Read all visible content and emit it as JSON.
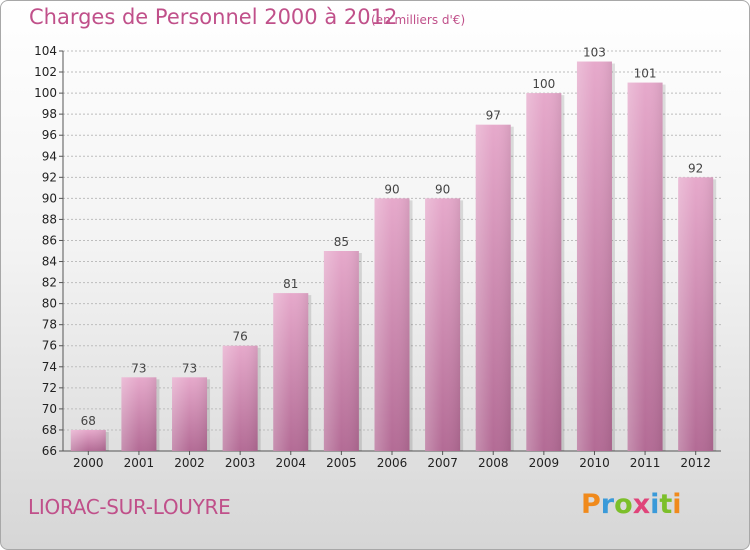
{
  "title": "Charges de Personnel 2000 à 2012",
  "subtitle": "(en milliers d'€)",
  "commune": "LIORAC-SUR-LOUYRE",
  "logo": {
    "p": "P",
    "r": "r",
    "o": "o",
    "x": "x",
    "i": "i",
    "t": "t",
    "i2": "i"
  },
  "colors": {
    "bar": "#d98bb6",
    "bar_light": "#e7b0cf",
    "text": "#c0508a"
  },
  "chart_data": {
    "type": "bar",
    "categories": [
      "2000",
      "2001",
      "2002",
      "2003",
      "2004",
      "2005",
      "2006",
      "2007",
      "2008",
      "2009",
      "2010",
      "2011",
      "2012"
    ],
    "values": [
      68,
      73,
      73,
      76,
      81,
      85,
      90,
      90,
      97,
      100,
      103,
      101,
      92
    ],
    "ylim": [
      66,
      104
    ],
    "yticks": [
      66,
      68,
      70,
      72,
      74,
      76,
      78,
      80,
      82,
      84,
      86,
      88,
      90,
      92,
      94,
      96,
      98,
      100,
      102,
      104
    ],
    "grid": true
  }
}
